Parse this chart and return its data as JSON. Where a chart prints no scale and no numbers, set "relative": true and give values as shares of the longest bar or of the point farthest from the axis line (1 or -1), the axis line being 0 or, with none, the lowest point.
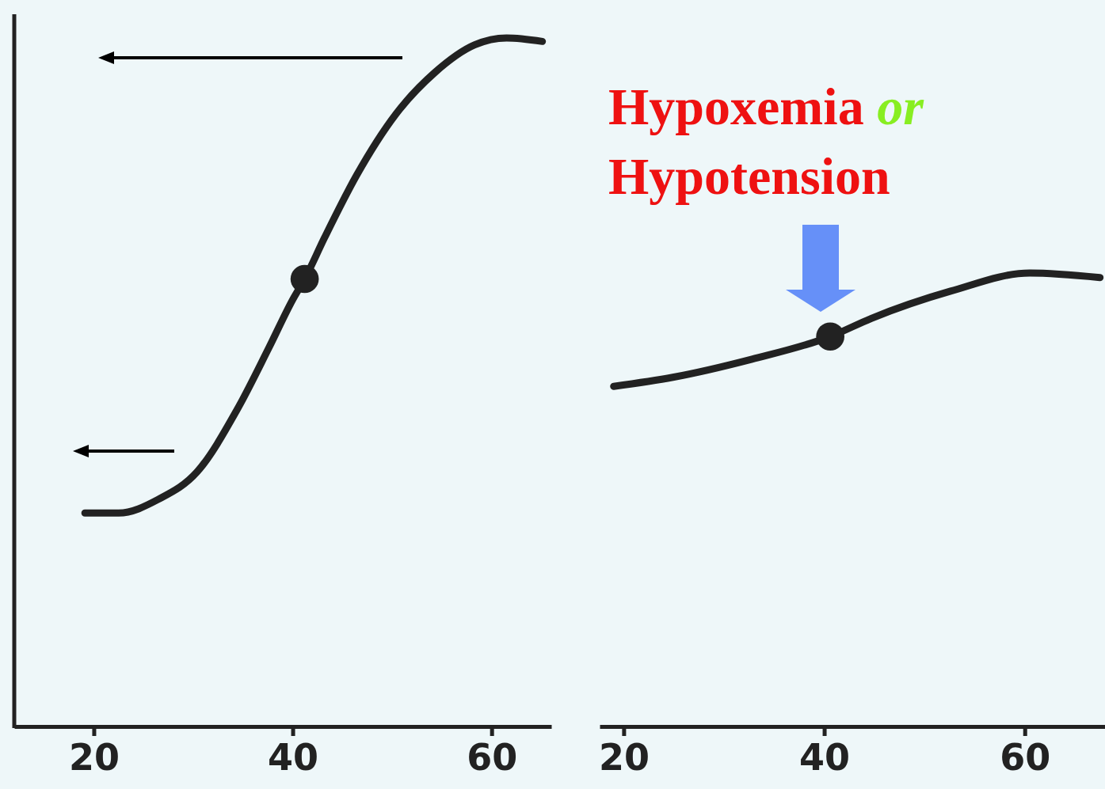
{
  "chart_data": [
    {
      "type": "line",
      "relative": true,
      "tick_labels": "x",
      "xlim": [
        12,
        66
      ],
      "xticks": [
        20,
        40,
        60
      ],
      "marker": "none",
      "line_style": "solid",
      "series": [
        {
          "color": "#222222",
          "x": [
            19.1,
            22.5,
            26.5,
            30.4,
            34.4,
            37.6,
            40,
            41.2,
            43.2,
            46.4,
            50.4,
            54.3,
            58.3,
            61.5,
            65.1
          ],
          "values": [
            0.31,
            0.31,
            0.33,
            0.37,
            0.46,
            0.55,
            0.62,
            0.65,
            0.71,
            0.8,
            0.89,
            0.95,
            0.99,
            1,
            0.995
          ]
        },
        {
          "type": "scatter",
          "marker": "circle",
          "color": "#222222",
          "x": [
            41.2
          ],
          "values": [
            0.65
          ]
        }
      ]
    },
    {
      "type": "line",
      "relative": true,
      "tick_labels": "x",
      "xlim": [
        17.6,
        68
      ],
      "xticks": [
        20,
        40,
        60
      ],
      "marker": "none",
      "line_style": "solid",
      "annotations": [
        "Hypoxemia or Hypotension"
      ],
      "series": [
        {
          "color": "#222222",
          "x": [
            19,
            24.9,
            32.8,
            40.6,
            44.7,
            52.6,
            60.5,
            67.5
          ],
          "values": [
            0.75,
            0.77,
            0.81,
            0.86,
            0.9,
            0.96,
            1,
            0.99
          ]
        },
        {
          "type": "scatter",
          "marker": "circle",
          "color": "#222222",
          "x": [
            40.6
          ],
          "values": [
            0.86
          ]
        }
      ]
    }
  ]
}
